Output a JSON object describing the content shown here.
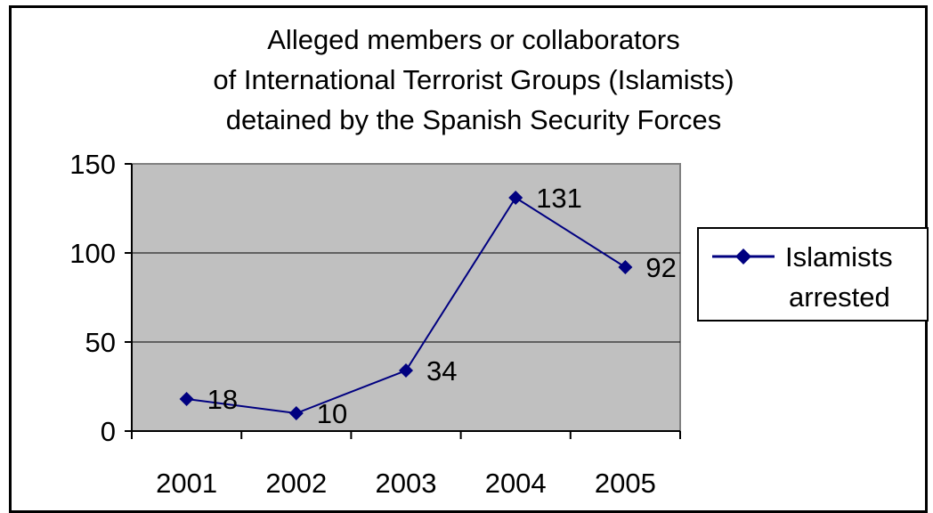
{
  "chart_data": {
    "type": "line",
    "title_lines": [
      "Alleged members or collaborators",
      "of International Terrorist Groups (Islamists)",
      "detained by the Spanish Security Forces"
    ],
    "categories": [
      "2001",
      "2002",
      "2003",
      "2004",
      "2005"
    ],
    "series": [
      {
        "name_lines": [
          "Islamists",
          "arrested"
        ],
        "values": [
          18,
          10,
          34,
          131,
          92
        ],
        "color": "#000080"
      }
    ],
    "data_labels": [
      "18",
      "10",
      "34",
      "131",
      "92"
    ],
    "y_ticks": [
      "0",
      "50",
      "100",
      "150"
    ],
    "y_tick_values": [
      0,
      50,
      100,
      150
    ],
    "ylim": [
      0,
      150
    ],
    "grid": true,
    "plot_background": "#c0c0c0",
    "legend_position": "right"
  }
}
